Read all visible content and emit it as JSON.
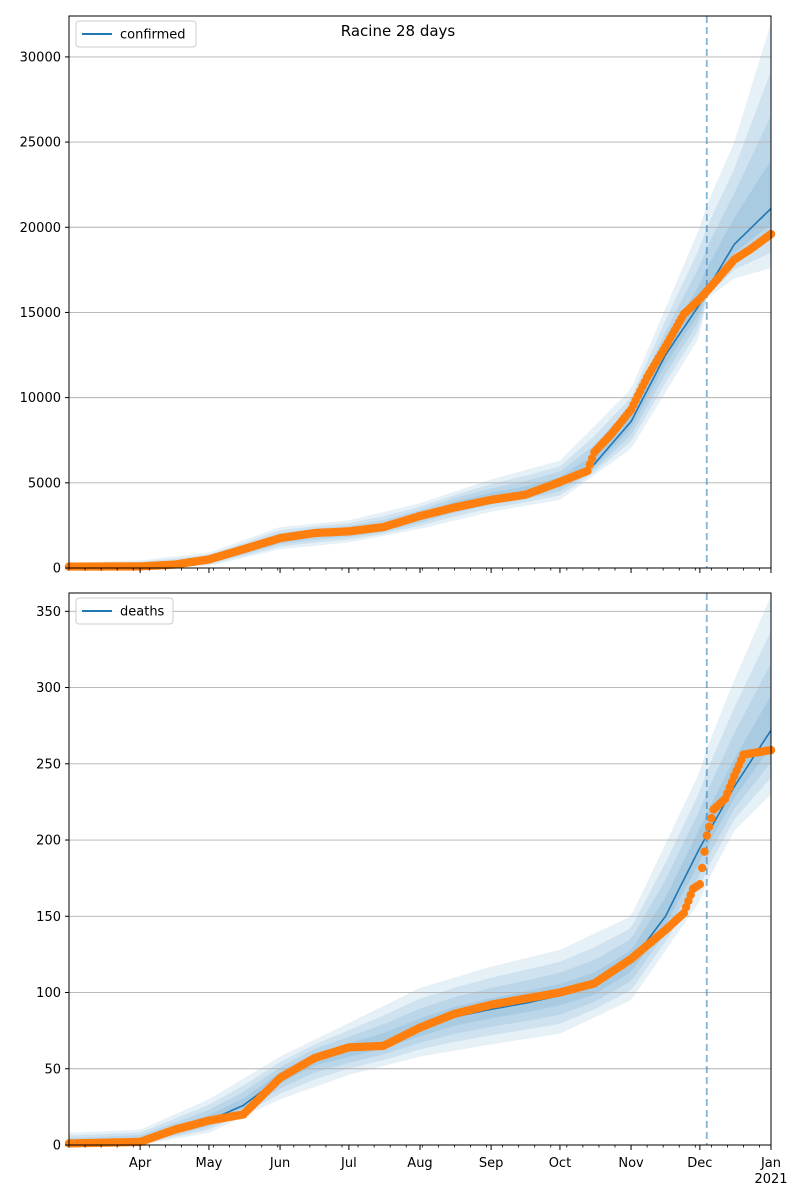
{
  "title": "Racine 28 days",
  "colors": {
    "model": "#1f77b4",
    "observed": "#ff7f0e",
    "band": "#1f77b4",
    "grid": "#b0b0b0",
    "cutoff": "#1f77b4"
  },
  "x_axis": {
    "months": [
      {
        "label": "Apr",
        "day": 31
      },
      {
        "label": "May",
        "day": 61
      },
      {
        "label": "Jun",
        "day": 92
      },
      {
        "label": "Jul",
        "day": 122
      },
      {
        "label": "Aug",
        "day": 153
      },
      {
        "label": "Sep",
        "day": 184
      },
      {
        "label": "Oct",
        "day": 214
      },
      {
        "label": "Nov",
        "day": 245
      },
      {
        "label": "Dec",
        "day": 275
      },
      {
        "label": "Jan",
        "day": 306
      }
    ],
    "year_label": "2021",
    "start": "2020-03-01",
    "end": "2021-01-01",
    "cutoff": "2020-12-04"
  },
  "chart_data": [
    {
      "type": "line",
      "title": "Racine 28 days",
      "legend": "confirmed",
      "legend_position": "top-left",
      "grid": "horizontal",
      "ylim": [
        0,
        32400
      ],
      "yticks": [
        0,
        5000,
        10000,
        15000,
        20000,
        25000,
        30000
      ],
      "model_knots": {
        "x": [
          "2020-03-01",
          "2020-04-01",
          "2020-04-16",
          "2020-05-01",
          "2020-05-16",
          "2020-06-01",
          "2020-06-16",
          "2020-07-01",
          "2020-07-16",
          "2020-08-01",
          "2020-08-16",
          "2020-09-01",
          "2020-09-16",
          "2020-10-01",
          "2020-10-16",
          "2020-11-01",
          "2020-11-16",
          "2020-12-01",
          "2020-12-04",
          "2020-12-16",
          "2021-01-01"
        ],
        "y": [
          80,
          90,
          180,
          450,
          1000,
          1700,
          2000,
          2150,
          2350,
          3000,
          3700,
          4150,
          4450,
          5000,
          6100,
          8600,
          12500,
          15500,
          16300,
          19000,
          21100
        ]
      },
      "band_knots": {
        "x": [
          "2020-03-01",
          "2020-04-01",
          "2020-05-01",
          "2020-06-01",
          "2020-07-01",
          "2020-08-01",
          "2020-09-01",
          "2020-10-01",
          "2020-11-01",
          "2020-12-01",
          "2020-12-04",
          "2020-12-16",
          "2021-01-01"
        ],
        "lower": [
          0,
          0,
          120,
          1100,
          1500,
          2300,
          3300,
          4000,
          7000,
          13600,
          15800,
          17000,
          17600
        ],
        "upper": [
          300,
          450,
          900,
          2400,
          2800,
          3800,
          5200,
          6300,
          10500,
          20000,
          21300,
          25000,
          32000
        ]
      },
      "observed_knots": {
        "x": [
          "2020-03-01",
          "2020-04-01",
          "2020-04-16",
          "2020-05-01",
          "2020-05-16",
          "2020-06-01",
          "2020-06-16",
          "2020-07-01",
          "2020-07-16",
          "2020-08-01",
          "2020-08-16",
          "2020-09-01",
          "2020-09-16",
          "2020-10-01",
          "2020-10-13",
          "2020-10-16",
          "2020-10-23",
          "2020-11-01",
          "2020-11-08",
          "2020-11-16",
          "2020-11-24",
          "2020-12-01",
          "2020-12-07",
          "2020-12-16",
          "2020-12-24",
          "2021-01-01"
        ],
        "y": [
          80,
          90,
          200,
          500,
          1100,
          1750,
          2050,
          2150,
          2400,
          3050,
          3550,
          4000,
          4300,
          5050,
          5700,
          6800,
          7800,
          9300,
          11200,
          13000,
          14900,
          15800,
          16700,
          18100,
          18800,
          19600
        ]
      }
    },
    {
      "type": "line",
      "legend": "deaths",
      "legend_position": "top-left",
      "grid": "horizontal",
      "ylim": [
        0,
        362
      ],
      "yticks": [
        0,
        50,
        100,
        150,
        200,
        250,
        300,
        350
      ],
      "model_knots": {
        "x": [
          "2020-03-01",
          "2020-04-01",
          "2020-04-16",
          "2020-05-01",
          "2020-05-16",
          "2020-06-01",
          "2020-06-16",
          "2020-07-01",
          "2020-07-16",
          "2020-08-01",
          "2020-08-16",
          "2020-09-01",
          "2020-09-16",
          "2020-10-01",
          "2020-10-16",
          "2020-11-01",
          "2020-11-16",
          "2020-12-01",
          "2020-12-04",
          "2020-12-16",
          "2021-01-01"
        ],
        "y": [
          1,
          3,
          9,
          16,
          26,
          44,
          57,
          62,
          67,
          76,
          84,
          89,
          93,
          98,
          104,
          120,
          150,
          195,
          203,
          235,
          272
        ]
      },
      "band_knots": {
        "x": [
          "2020-03-01",
          "2020-04-01",
          "2020-05-01",
          "2020-06-01",
          "2020-07-01",
          "2020-08-01",
          "2020-09-01",
          "2020-10-01",
          "2020-11-01",
          "2020-12-01",
          "2020-12-04",
          "2020-12-16",
          "2021-01-01"
        ],
        "lower": [
          0,
          0,
          8,
          30,
          46,
          58,
          66,
          73,
          95,
          160,
          172,
          206,
          230
        ],
        "upper": [
          8,
          10,
          30,
          58,
          80,
          103,
          117,
          128,
          150,
          245,
          260,
          305,
          360
        ]
      },
      "observed_knots": {
        "x": [
          "2020-03-01",
          "2020-04-01",
          "2020-04-16",
          "2020-05-01",
          "2020-05-16",
          "2020-06-01",
          "2020-06-16",
          "2020-07-01",
          "2020-07-16",
          "2020-08-01",
          "2020-08-16",
          "2020-09-01",
          "2020-09-16",
          "2020-10-01",
          "2020-10-16",
          "2020-11-01",
          "2020-11-16",
          "2020-11-24",
          "2020-11-28",
          "2020-12-01",
          "2020-12-04",
          "2020-12-07",
          "2020-12-12",
          "2020-12-16",
          "2020-12-20",
          "2021-01-01"
        ],
        "y": [
          1,
          2,
          10,
          16,
          20,
          44,
          57,
          64,
          65,
          77,
          86,
          92,
          96,
          100,
          106,
          122,
          141,
          152,
          168,
          171,
          203,
          220,
          227,
          242,
          256,
          259
        ]
      }
    }
  ]
}
